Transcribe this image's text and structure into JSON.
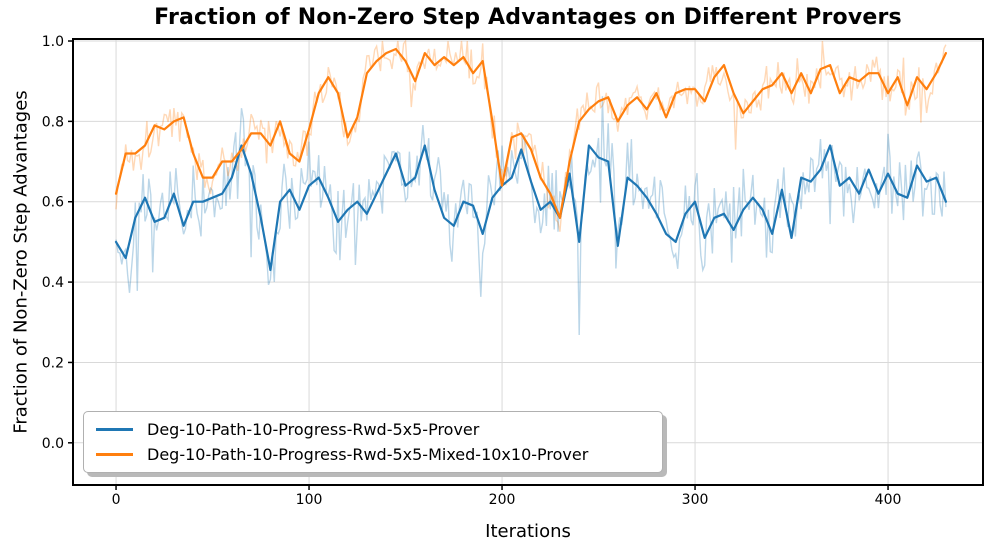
{
  "chart": {
    "title": "Fraction of Non-Zero Step Advantages on Different Provers",
    "xlabel": "Iterations",
    "ylabel": "Fraction of Non-Zero Step Advantages"
  },
  "colors": {
    "series_blue": "#1f77b4",
    "series_orange": "#ff7f0e",
    "grid": "#d9d9d9",
    "spine": "#000000",
    "tick_text": "#000000",
    "legend_border": "#b0b0b0",
    "legend_shadow": "#b9b9b9",
    "background": "#ffffff"
  },
  "chart_data": {
    "type": "line",
    "title": "Fraction of Non-Zero Step Advantages on Different Provers",
    "xlabel": "Iterations",
    "ylabel": "Fraction of Non-Zero Step Advantages",
    "x_start": 0,
    "x_step": 5,
    "x_end": 430,
    "xlim": [
      -22.3,
      449.2
    ],
    "ylim": [
      -0.105,
      1.005
    ],
    "xticks": [
      0,
      100,
      200,
      300,
      400
    ],
    "xtick_labels": [
      "0",
      "100",
      "200",
      "300",
      "400"
    ],
    "yticks": [
      0.0,
      0.2,
      0.4,
      0.6,
      0.8,
      1.0
    ],
    "ytick_labels": [
      "0.0",
      "0.2",
      "0.4",
      "0.6",
      "0.8",
      "1.0"
    ],
    "grid": true,
    "legend_position": "lower left",
    "series": [
      {
        "name": "Deg-10-Path-10-Progress-Rwd-5x5-Prover",
        "color": "#1f77b4",
        "smoothed_line_width": 2.2,
        "raw_overlay": {
          "alpha": 0.3,
          "step": 1,
          "seed": 42,
          "noise_amplitude": 0.115,
          "min": 0.2,
          "max": 0.88
        },
        "values": [
          0.5,
          0.46,
          0.56,
          0.61,
          0.55,
          0.56,
          0.62,
          0.54,
          0.6,
          0.6,
          0.61,
          0.62,
          0.66,
          0.74,
          0.67,
          0.56,
          0.43,
          0.6,
          0.63,
          0.58,
          0.64,
          0.66,
          0.61,
          0.55,
          0.58,
          0.6,
          0.57,
          0.62,
          0.67,
          0.72,
          0.64,
          0.66,
          0.74,
          0.63,
          0.56,
          0.54,
          0.6,
          0.59,
          0.52,
          0.61,
          0.64,
          0.66,
          0.73,
          0.65,
          0.58,
          0.6,
          0.56,
          0.67,
          0.5,
          0.74,
          0.71,
          0.7,
          0.49,
          0.66,
          0.64,
          0.61,
          0.57,
          0.52,
          0.5,
          0.57,
          0.6,
          0.51,
          0.56,
          0.57,
          0.53,
          0.58,
          0.61,
          0.58,
          0.52,
          0.63,
          0.51,
          0.66,
          0.65,
          0.68,
          0.74,
          0.64,
          0.66,
          0.62,
          0.68,
          0.62,
          0.67,
          0.62,
          0.61,
          0.69,
          0.65,
          0.66,
          0.6
        ]
      },
      {
        "name": "Deg-10-Path-10-Progress-Rwd-5x5-Mixed-10x10-Prover",
        "color": "#ff7f0e",
        "smoothed_line_width": 2.2,
        "raw_overlay": {
          "alpha": 0.3,
          "step": 1,
          "seed": 1337,
          "noise_amplitude": 0.062,
          "min": 0.42,
          "max": 1.0
        },
        "values": [
          0.62,
          0.72,
          0.72,
          0.74,
          0.79,
          0.78,
          0.8,
          0.81,
          0.72,
          0.66,
          0.66,
          0.7,
          0.7,
          0.73,
          0.77,
          0.77,
          0.74,
          0.8,
          0.72,
          0.7,
          0.78,
          0.87,
          0.91,
          0.87,
          0.76,
          0.81,
          0.92,
          0.95,
          0.97,
          0.98,
          0.95,
          0.9,
          0.97,
          0.94,
          0.96,
          0.94,
          0.96,
          0.92,
          0.95,
          0.8,
          0.64,
          0.76,
          0.77,
          0.73,
          0.66,
          0.62,
          0.56,
          0.7,
          0.8,
          0.83,
          0.85,
          0.86,
          0.8,
          0.84,
          0.86,
          0.83,
          0.87,
          0.81,
          0.87,
          0.88,
          0.88,
          0.85,
          0.91,
          0.94,
          0.87,
          0.82,
          0.85,
          0.88,
          0.89,
          0.92,
          0.87,
          0.92,
          0.87,
          0.93,
          0.94,
          0.87,
          0.91,
          0.9,
          0.92,
          0.92,
          0.87,
          0.91,
          0.84,
          0.91,
          0.88,
          0.92,
          0.97
        ]
      }
    ]
  }
}
